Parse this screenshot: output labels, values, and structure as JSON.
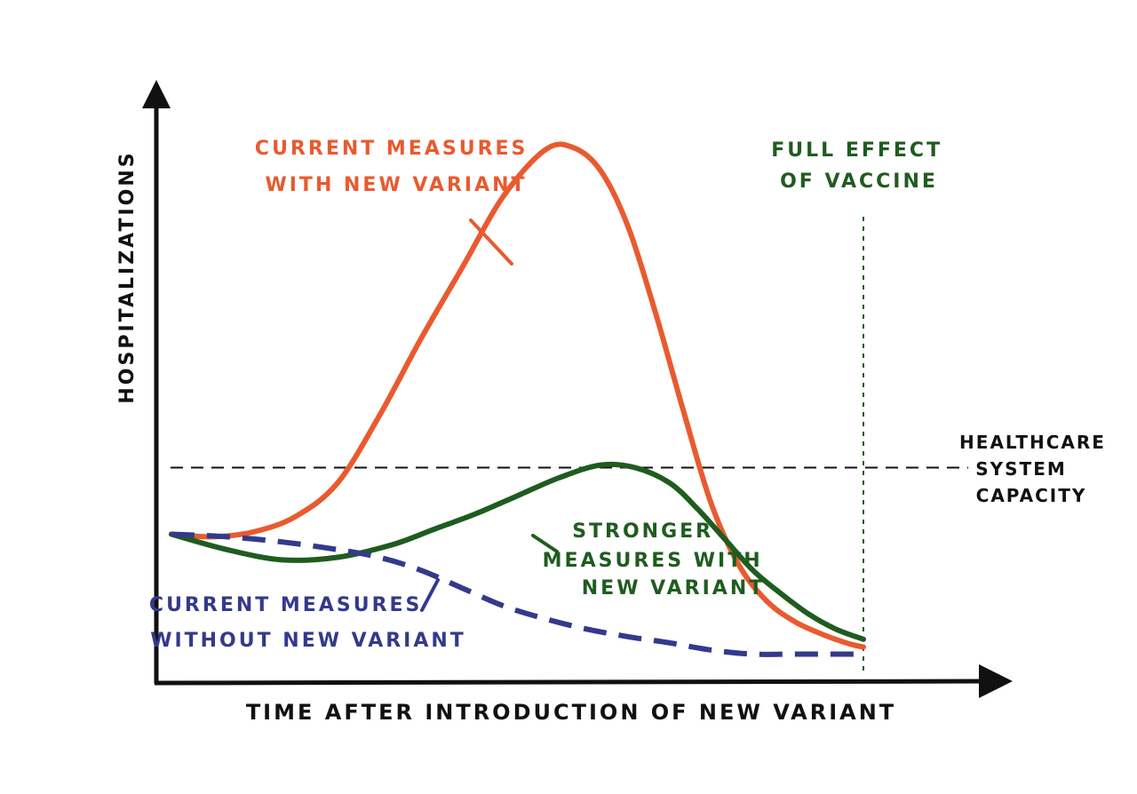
{
  "chart_data": {
    "type": "line",
    "title": "",
    "xlabel": "TIME AFTER INTRODUCTION OF NEW VARIANT",
    "ylabel": "HOSPITALIZATIONS",
    "grid": false,
    "legend": "none",
    "xlim": [
      0,
      100
    ],
    "ylim": [
      0,
      100
    ],
    "series": [
      {
        "label_lines": [
          "CURRENT MEASURES",
          "WITH NEW VARIANT"
        ],
        "color": "#e95a2f",
        "style": "solid",
        "x": [
          0,
          6,
          12,
          18,
          24,
          30,
          36,
          42,
          48,
          54,
          58,
          62,
          66,
          70,
          74,
          78,
          82,
          86,
          90,
          94,
          98,
          100
        ],
        "y": [
          24,
          23.5,
          24.5,
          27.5,
          34,
          47,
          62,
          76,
          90,
          99,
          99.5,
          95,
          84,
          67,
          48,
          30,
          18,
          11,
          7,
          4.5,
          2.6,
          2
        ]
      },
      {
        "label_lines": [
          "STRONGER",
          "MEASURES WITH",
          "NEW VARIANT"
        ],
        "color": "#1f5c1f",
        "style": "solid",
        "x": [
          0,
          8,
          16,
          24,
          32,
          38,
          44,
          50,
          56,
          62,
          67,
          72,
          76,
          80,
          84,
          88,
          92,
          96,
          100
        ],
        "y": [
          24,
          21,
          19,
          19.5,
          22,
          25,
          28,
          31.5,
          35,
          37.5,
          37,
          34,
          29,
          23,
          17,
          12.5,
          8.5,
          5.5,
          3.5
        ]
      },
      {
        "label_lines": [
          "CURRENT MEASURES",
          "WITHOUT NEW VARIANT"
        ],
        "color": "#333a8c",
        "style": "dashed",
        "x": [
          0,
          8,
          16,
          24,
          30,
          36,
          42,
          48,
          54,
          60,
          66,
          72,
          78,
          84,
          90,
          96,
          100
        ],
        "y": [
          24,
          23.5,
          22.5,
          21,
          19.5,
          17,
          13.5,
          10,
          7.5,
          5.5,
          4,
          2.8,
          1.4,
          0.6,
          0.6,
          0.6,
          0.6
        ]
      }
    ],
    "reference_lines": {
      "capacity": {
        "y": 37,
        "label_lines": [
          "HEALTHCARE",
          "SYSTEM",
          "CAPACITY"
        ]
      },
      "vaccine": {
        "x": 100,
        "label_lines": [
          "FULL EFFECT",
          "OF VACCINE"
        ]
      }
    }
  }
}
